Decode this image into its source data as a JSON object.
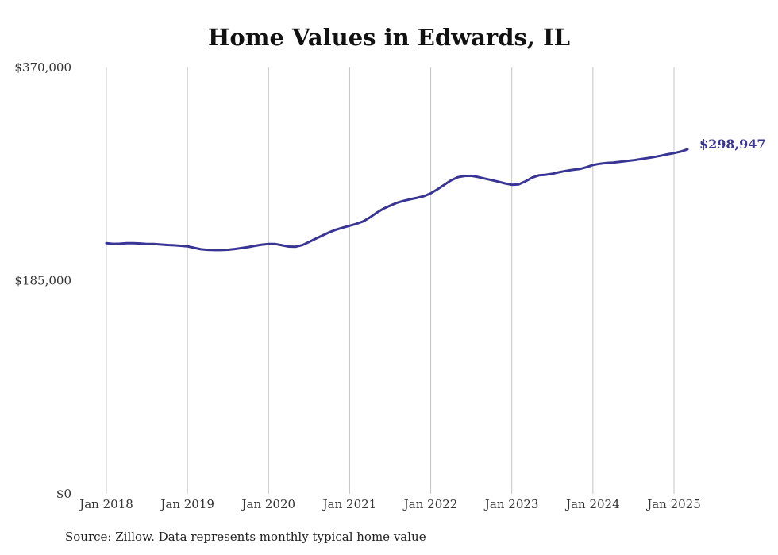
{
  "chart_data": {
    "type": "line",
    "title": "Home Values in Edwards, IL",
    "source": "Source: Zillow. Data represents monthly typical home value",
    "ylim": [
      0,
      370000
    ],
    "yticks": [
      {
        "value": 0,
        "label": "$0"
      },
      {
        "value": 185000,
        "label": "$185,000"
      },
      {
        "value": 370000,
        "label": "$370,000"
      }
    ],
    "xlim": [
      "2018-01",
      "2025-04"
    ],
    "xticks": [
      {
        "date": "2018-01",
        "label": "Jan 2018"
      },
      {
        "date": "2019-01",
        "label": "Jan 2019"
      },
      {
        "date": "2020-01",
        "label": "Jan 2020"
      },
      {
        "date": "2021-01",
        "label": "Jan 2021"
      },
      {
        "date": "2022-01",
        "label": "Jan 2022"
      },
      {
        "date": "2023-01",
        "label": "Jan 2023"
      },
      {
        "date": "2024-01",
        "label": "Jan 2024"
      },
      {
        "date": "2025-01",
        "label": "Jan 2025"
      }
    ],
    "grid": "vertical",
    "line_color": "#3a3494",
    "end_label": "$298,947",
    "series": [
      {
        "name": "",
        "points": [
          [
            "2018-01",
            217500
          ],
          [
            "2018-02",
            217000
          ],
          [
            "2018-03",
            217100
          ],
          [
            "2018-04",
            217500
          ],
          [
            "2018-05",
            217600
          ],
          [
            "2018-06",
            217300
          ],
          [
            "2018-07",
            216900
          ],
          [
            "2018-08",
            216800
          ],
          [
            "2018-09",
            216400
          ],
          [
            "2018-10",
            216000
          ],
          [
            "2018-11",
            215700
          ],
          [
            "2018-12",
            215300
          ],
          [
            "2019-01",
            214800
          ],
          [
            "2019-02",
            213500
          ],
          [
            "2019-03",
            212300
          ],
          [
            "2019-04",
            211800
          ],
          [
            "2019-05",
            211600
          ],
          [
            "2019-06",
            211600
          ],
          [
            "2019-07",
            211900
          ],
          [
            "2019-08",
            212500
          ],
          [
            "2019-09",
            213300
          ],
          [
            "2019-10",
            214200
          ],
          [
            "2019-11",
            215300
          ],
          [
            "2019-12",
            216300
          ],
          [
            "2020-01",
            216900
          ],
          [
            "2020-02",
            216800
          ],
          [
            "2020-03",
            215700
          ],
          [
            "2020-04",
            214600
          ],
          [
            "2020-05",
            214500
          ],
          [
            "2020-06",
            215900
          ],
          [
            "2020-07",
            218600
          ],
          [
            "2020-08",
            221500
          ],
          [
            "2020-09",
            224300
          ],
          [
            "2020-10",
            227000
          ],
          [
            "2020-11",
            229300
          ],
          [
            "2020-12",
            231000
          ],
          [
            "2021-01",
            232700
          ],
          [
            "2021-02",
            234300
          ],
          [
            "2021-03",
            236500
          ],
          [
            "2021-04",
            239900
          ],
          [
            "2021-05",
            244000
          ],
          [
            "2021-06",
            247500
          ],
          [
            "2021-07",
            250100
          ],
          [
            "2021-08",
            252600
          ],
          [
            "2021-09",
            254300
          ],
          [
            "2021-10",
            255700
          ],
          [
            "2021-11",
            256900
          ],
          [
            "2021-12",
            258400
          ],
          [
            "2022-01",
            260800
          ],
          [
            "2022-02",
            264300
          ],
          [
            "2022-03",
            268200
          ],
          [
            "2022-04",
            272100
          ],
          [
            "2022-05",
            274800
          ],
          [
            "2022-06",
            275900
          ],
          [
            "2022-07",
            276000
          ],
          [
            "2022-08",
            275000
          ],
          [
            "2022-09",
            273600
          ],
          [
            "2022-10",
            272300
          ],
          [
            "2022-11",
            270900
          ],
          [
            "2022-12",
            269400
          ],
          [
            "2023-01",
            268200
          ],
          [
            "2023-02",
            268600
          ],
          [
            "2023-03",
            271100
          ],
          [
            "2023-04",
            274400
          ],
          [
            "2023-05",
            276400
          ],
          [
            "2023-06",
            276900
          ],
          [
            "2023-07",
            277800
          ],
          [
            "2023-08",
            279100
          ],
          [
            "2023-09",
            280300
          ],
          [
            "2023-10",
            281200
          ],
          [
            "2023-11",
            281900
          ],
          [
            "2023-12",
            283400
          ],
          [
            "2024-01",
            285400
          ],
          [
            "2024-02",
            286500
          ],
          [
            "2024-03",
            287100
          ],
          [
            "2024-04",
            287500
          ],
          [
            "2024-05",
            288200
          ],
          [
            "2024-06",
            288800
          ],
          [
            "2024-07",
            289500
          ],
          [
            "2024-08",
            290400
          ],
          [
            "2024-09",
            291300
          ],
          [
            "2024-10",
            292300
          ],
          [
            "2024-11",
            293400
          ],
          [
            "2024-12",
            294600
          ],
          [
            "2025-01",
            295700
          ],
          [
            "2025-02",
            297000
          ],
          [
            "2025-03",
            298947
          ]
        ]
      }
    ]
  }
}
